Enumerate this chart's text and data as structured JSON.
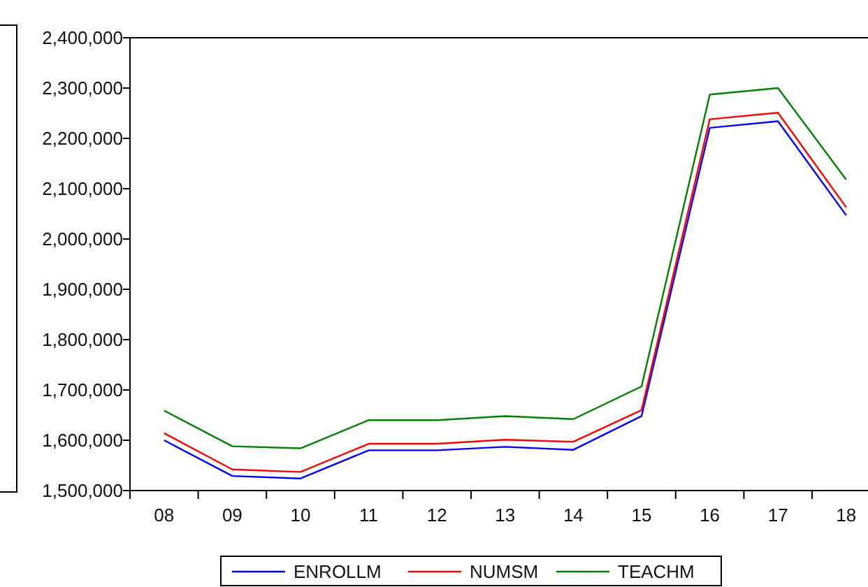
{
  "chart_data": {
    "type": "line",
    "categories": [
      "08",
      "09",
      "10",
      "11",
      "12",
      "13",
      "14",
      "15",
      "16",
      "17",
      "18"
    ],
    "series": [
      {
        "name": "ENROLLM",
        "color": "#0000ff",
        "values": [
          1600000,
          1529000,
          1524000,
          1580000,
          1580000,
          1587000,
          1581000,
          1648000,
          2221000,
          2234000,
          2047000
        ]
      },
      {
        "name": "NUMSM",
        "color": "#ff0000",
        "values": [
          1614000,
          1542000,
          1537000,
          1593000,
          1593000,
          1601000,
          1597000,
          1660000,
          2238000,
          2251000,
          2063000
        ]
      },
      {
        "name": "TEACHM",
        "color": "#008000",
        "values": [
          1659000,
          1588000,
          1584000,
          1640000,
          1640000,
          1648000,
          1642000,
          1707000,
          2287000,
          2300000,
          2118000
        ]
      }
    ],
    "ylim": [
      1500000,
      2400000
    ],
    "yticks": [
      {
        "value": 1500000,
        "label": "1,500,000"
      },
      {
        "value": 1600000,
        "label": "1,600,000"
      },
      {
        "value": 1700000,
        "label": "1,700,000"
      },
      {
        "value": 1800000,
        "label": "1,800,000"
      },
      {
        "value": 1900000,
        "label": "1,900,000"
      },
      {
        "value": 2000000,
        "label": "2,000,000"
      },
      {
        "value": 2100000,
        "label": "2,100,000"
      },
      {
        "value": 2200000,
        "label": "2,200,000"
      },
      {
        "value": 2300000,
        "label": "2,300,000"
      },
      {
        "value": 2400000,
        "label": "2,400,000"
      }
    ],
    "grid": false,
    "legend": "bottom",
    "line_style": "solid"
  }
}
